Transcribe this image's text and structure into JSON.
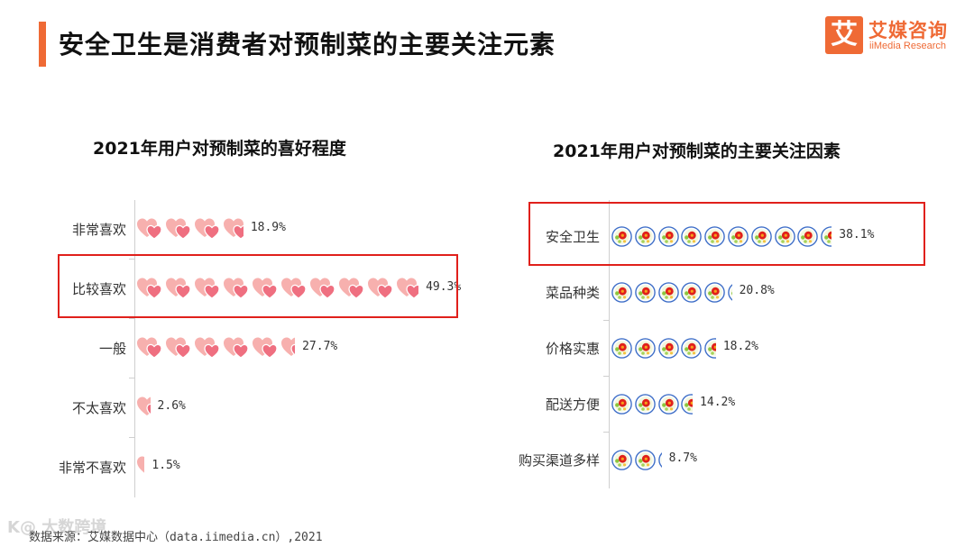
{
  "header": {
    "title": "安全卫生是消费者对预制菜的主要关注元素",
    "accent_color": "#ef6a35"
  },
  "logo": {
    "mark": "艾",
    "name_cn": "艾媒咨询",
    "name_en": "iiMedia Research"
  },
  "chart_data": [
    {
      "type": "bar",
      "title": "2021年用户对预制菜的喜好程度",
      "icon": "heart-icon",
      "units_per_icon": 5,
      "categories": [
        "非常喜欢",
        "比较喜欢",
        "一般",
        "不太喜欢",
        "非常不喜欢"
      ],
      "values": [
        18.9,
        49.3,
        27.7,
        2.6,
        1.5
      ],
      "value_labels": [
        "18.9%",
        "49.3%",
        "27.7%",
        "2.6%",
        "1.5%"
      ],
      "highlighted": "比较喜欢",
      "color": "#f28b8b"
    },
    {
      "type": "bar",
      "title": "2021年用户对预制菜的主要关注因素",
      "icon": "plate-icon",
      "units_per_icon": 4,
      "categories": [
        "安全卫生",
        "菜品种类",
        "价格实惠",
        "配送方便",
        "购买渠道多样"
      ],
      "values": [
        38.1,
        20.8,
        18.2,
        14.2,
        8.7
      ],
      "value_labels": [
        "38.1%",
        "20.8%",
        "18.2%",
        "14.2%",
        "8.7%"
      ],
      "highlighted": "安全卫生",
      "color": "#e0201b"
    }
  ],
  "footer": {
    "source": "数据来源：艾媒数据中心（data.iimedia.cn）,2021",
    "watermark": "K@ 大数跨境"
  }
}
